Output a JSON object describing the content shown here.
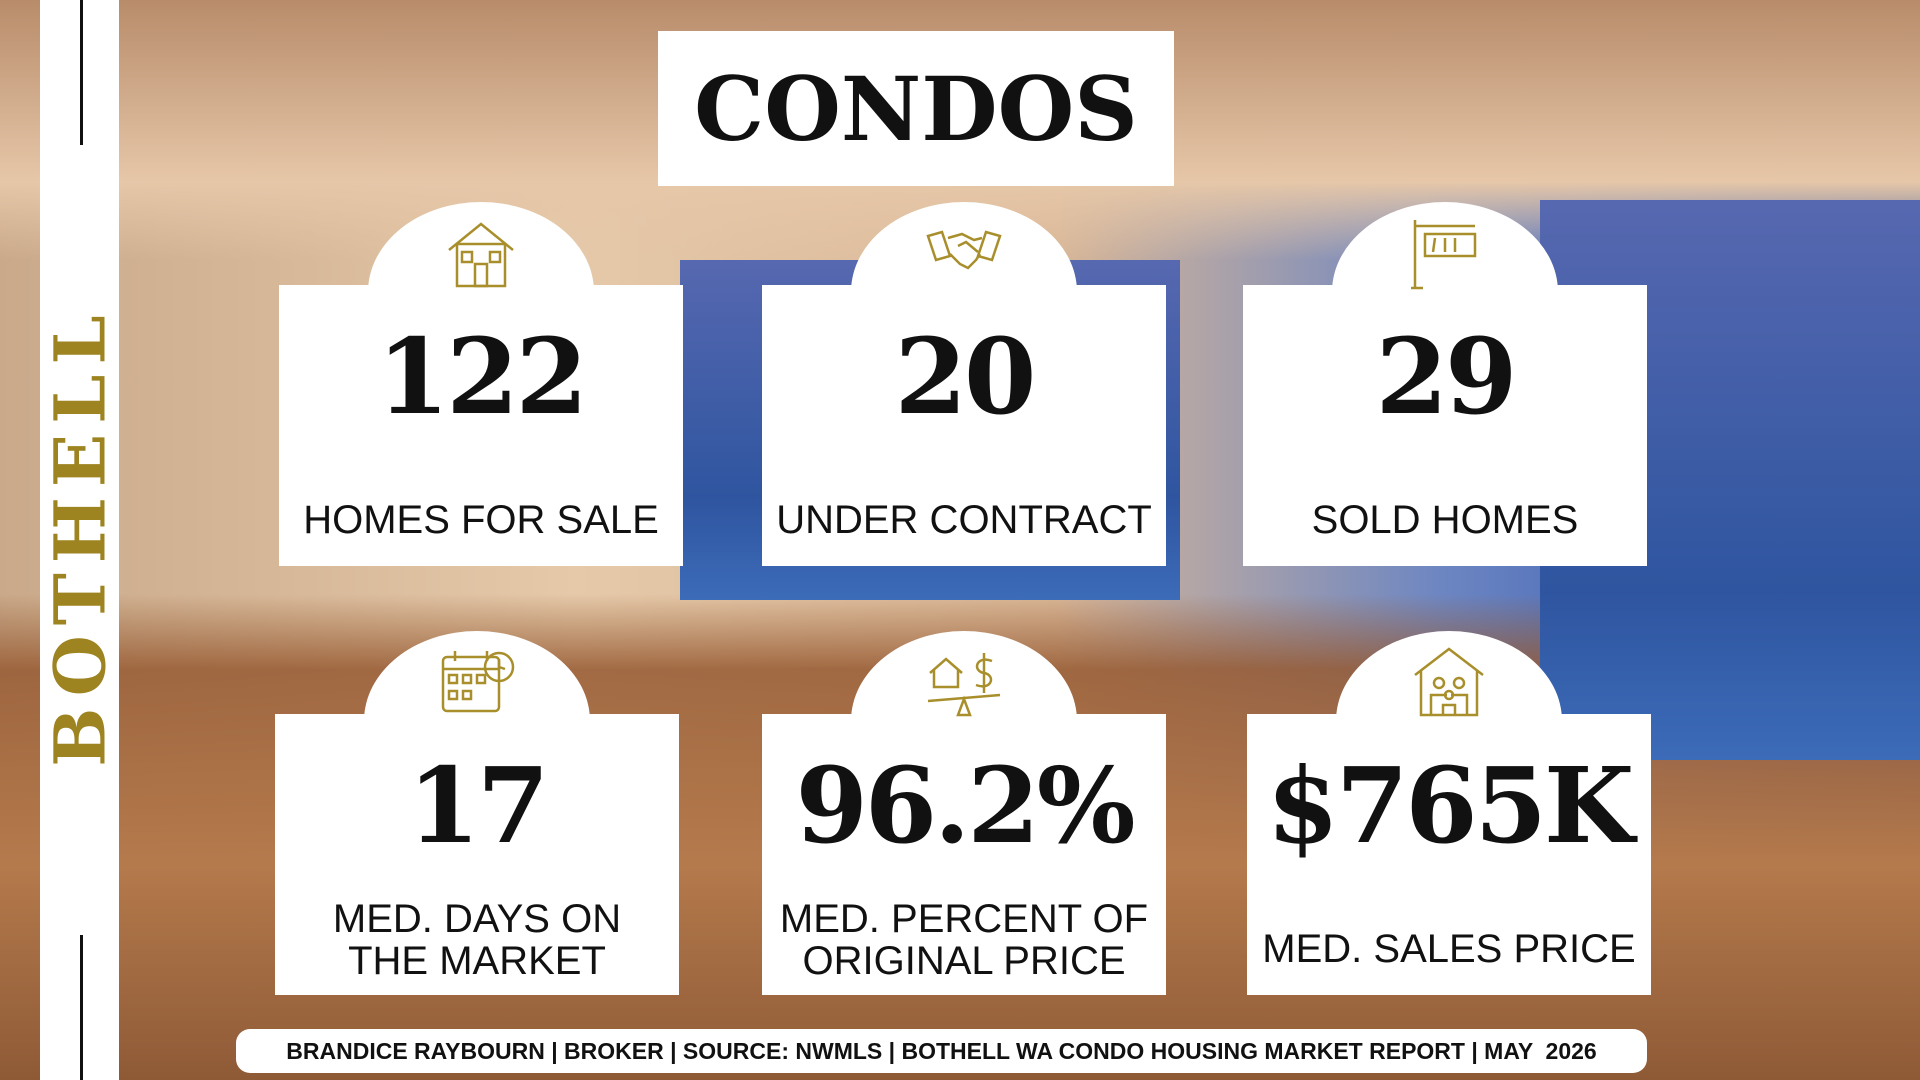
{
  "sidebar": {
    "title": "BOTHELL"
  },
  "header": {
    "title": "CONDOS"
  },
  "stats": [
    {
      "value": "122",
      "label": [
        "HOMES FOR SALE"
      ]
    },
    {
      "value": "20",
      "label": [
        "UNDER CONTRACT"
      ]
    },
    {
      "value": "29",
      "label": [
        "SOLD HOMES"
      ]
    },
    {
      "value": "17",
      "label": [
        "MED. DAYS ON",
        "THE MARKET"
      ]
    },
    {
      "value": "96.2%",
      "label": [
        "MED. PERCENT OF",
        "ORIGINAL PRICE"
      ]
    },
    {
      "value": "$765K",
      "label": [
        "MED. SALES PRICE"
      ]
    }
  ],
  "footer": {
    "text": "BRANDICE RAYBOURN | BROKER | SOURCE: NWMLS | BOTHELL WA CONDO HOUSING MARKET REPORT | MAY  2026"
  }
}
